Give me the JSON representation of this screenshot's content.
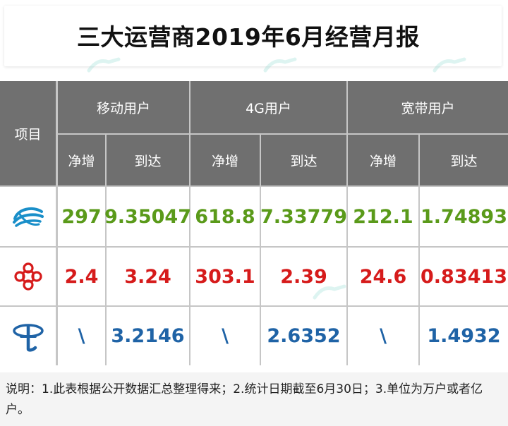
{
  "title": "三大运营商2019年6月经营月报",
  "header": {
    "item_label": "项目",
    "groups": [
      "移动用户",
      "4G用户",
      "宽带用户"
    ],
    "sub": [
      "净增",
      "到达",
      "净增",
      "到达",
      "净增",
      "到达"
    ]
  },
  "rows": [
    {
      "operator_icon": "china-mobile-logo-icon",
      "values": [
        "297",
        "9.35047",
        "618.8",
        "7.33779",
        "212.1",
        "1.74893"
      ],
      "color": "#5a9a1a"
    },
    {
      "operator_icon": "china-unicom-logo-icon",
      "values": [
        "2.4",
        "3.24",
        "303.1",
        "2.39",
        "24.6",
        "0.83413"
      ],
      "color": "#d61b1b"
    },
    {
      "operator_icon": "china-telecom-logo-icon",
      "values": [
        "\\",
        "3.2146",
        "\\",
        "2.6352",
        "\\",
        "1.4932"
      ],
      "color": "#1f63a6"
    }
  ],
  "note": "说明：1.此表根据公开数据汇总整理得来；2.统计日期截至6月30日；3.单位为万户或者亿户。",
  "colors": {
    "mobile": "#1a8fc9",
    "unicom": "#d61b1b",
    "telecom": "#1f63a6",
    "header_bg": "#707070"
  }
}
